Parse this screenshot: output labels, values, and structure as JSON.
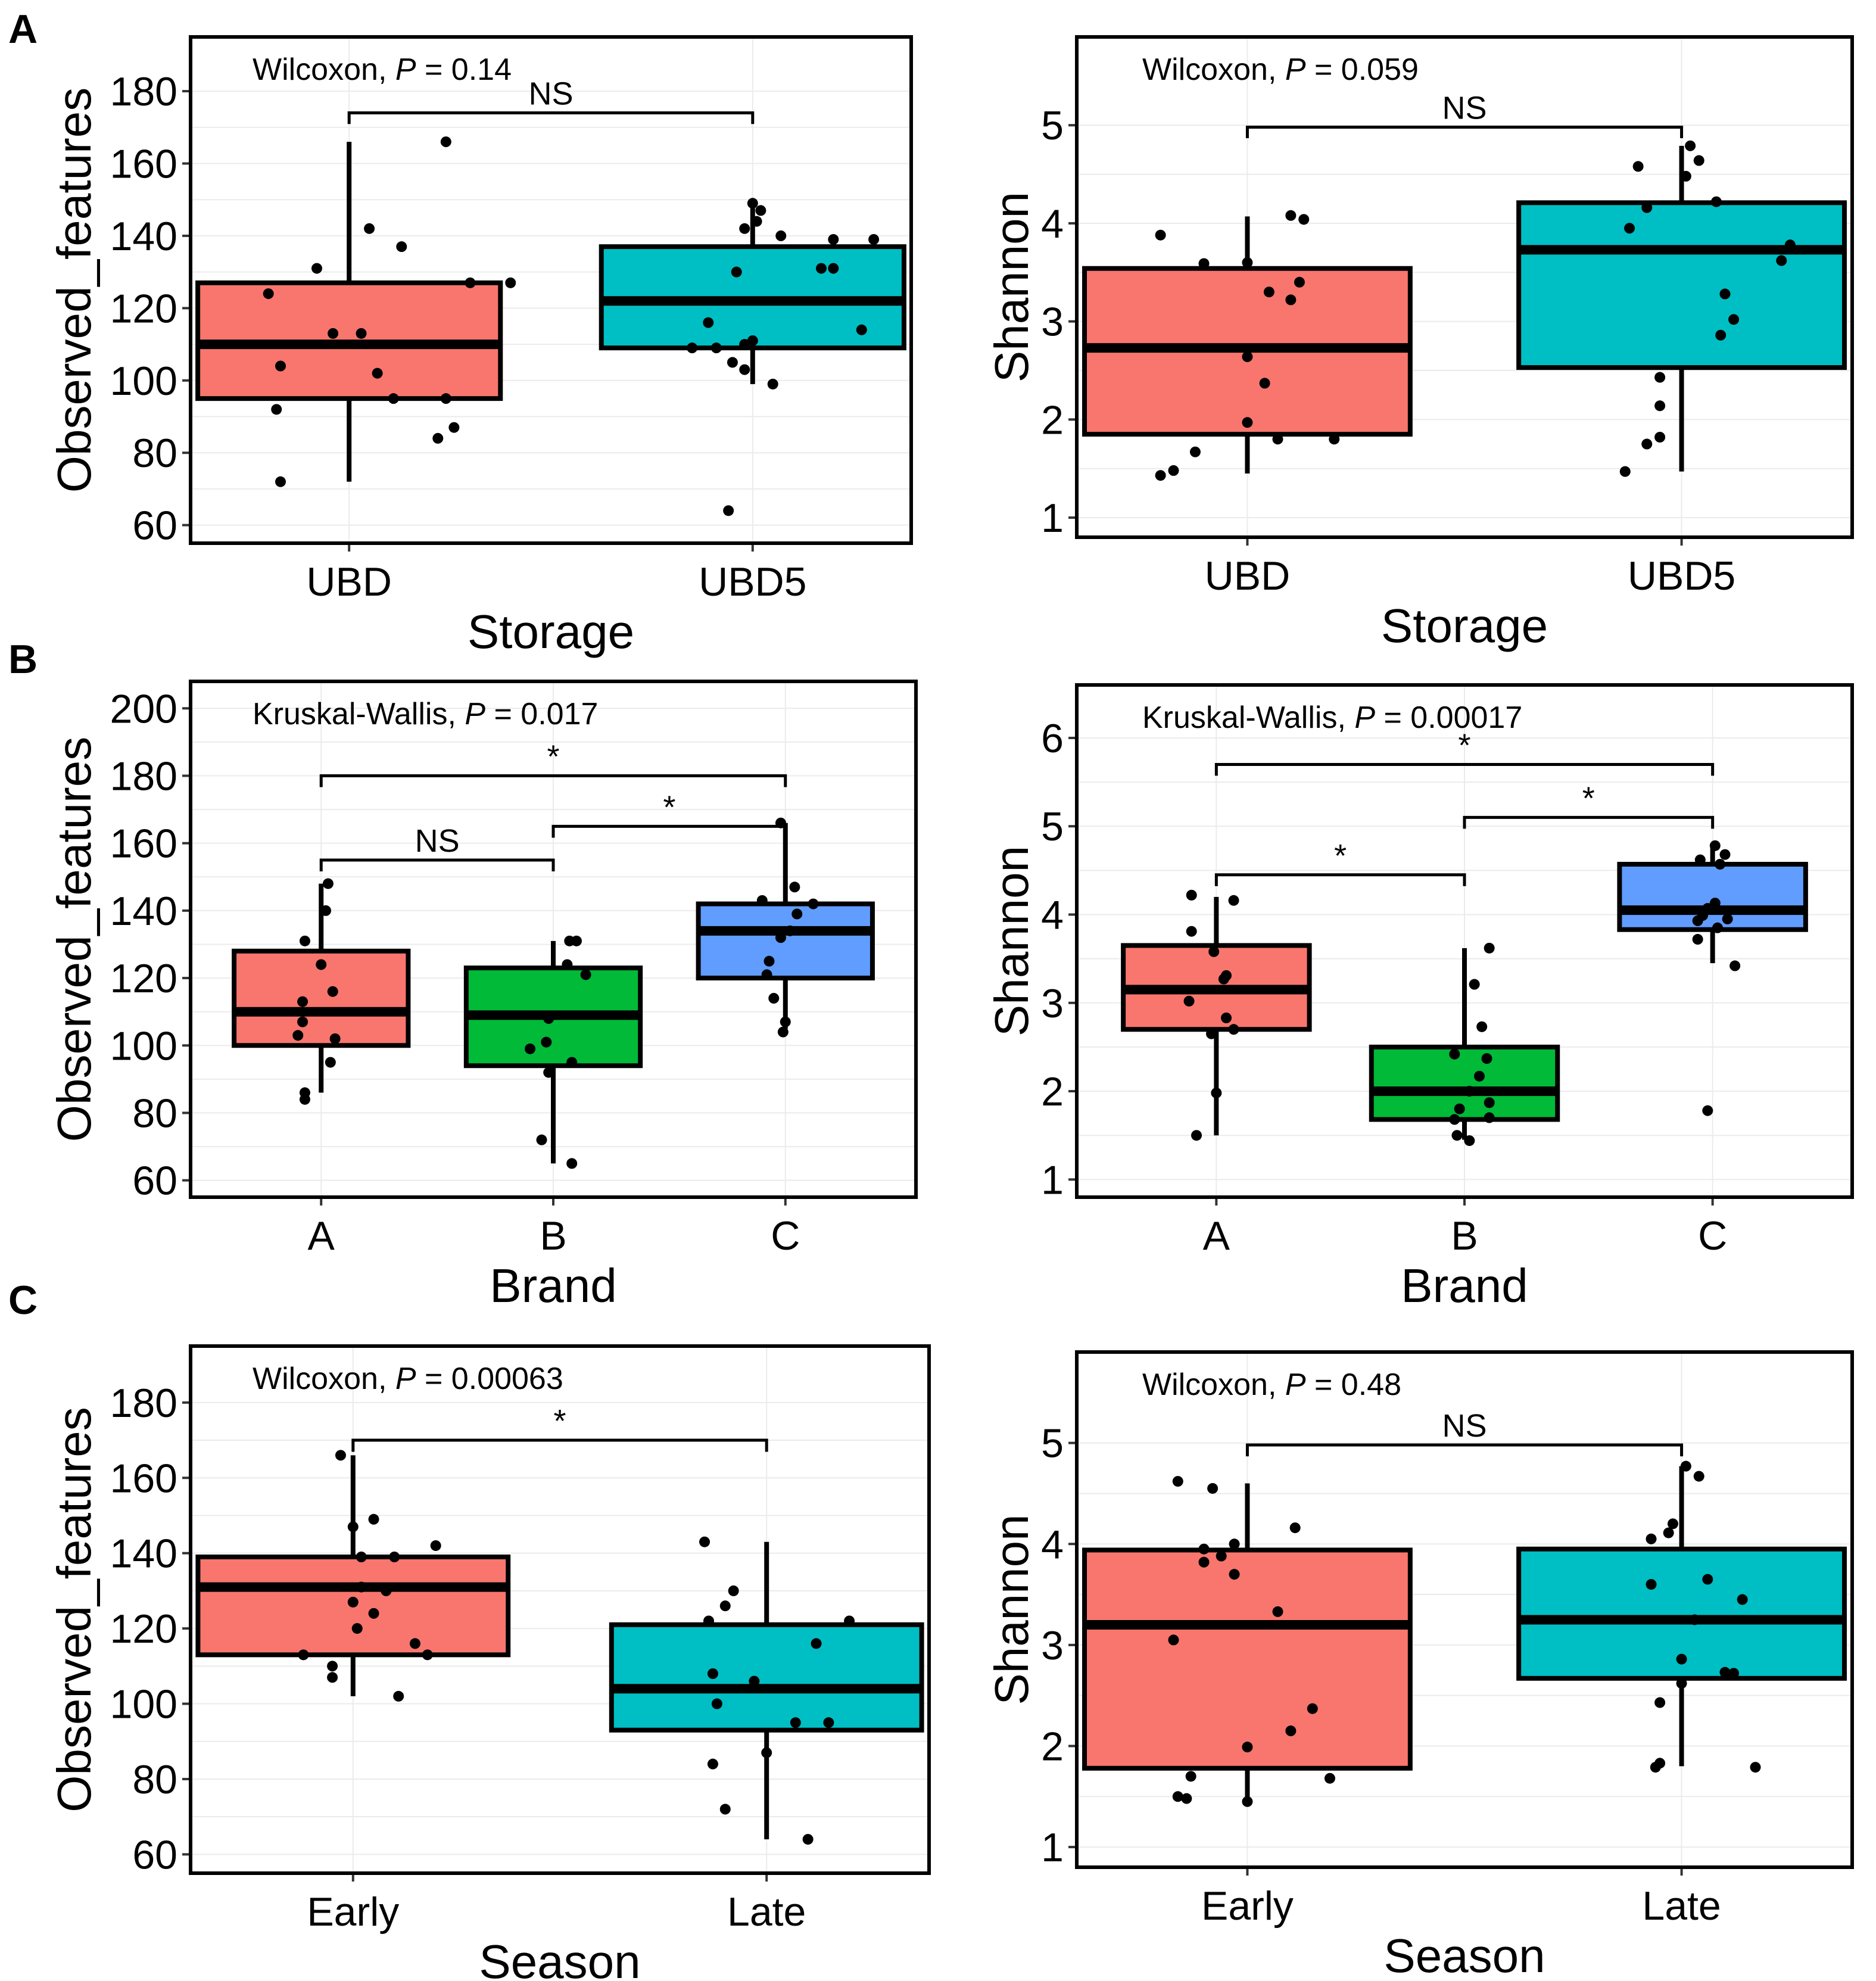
{
  "panel_letters": [
    "A",
    "B",
    "C"
  ],
  "colors": {
    "red": "#F8766D",
    "teal": "#00BFC4",
    "green": "#00BA38",
    "blue": "#619CFF"
  },
  "chart_data": [
    {
      "type": "box",
      "panel": "A",
      "xlabel": "Storage",
      "ylabel": "Observed_features",
      "ylim": [
        55,
        195
      ],
      "yticks": [
        60,
        80,
        100,
        120,
        140,
        160,
        180
      ],
      "categories": [
        "UBD",
        "UBD5"
      ],
      "box_colors": [
        "red",
        "teal"
      ],
      "boxes": [
        {
          "whisker_low": 72,
          "q1": 95,
          "median": 110,
          "q3": 127,
          "whisker_high": 166
        },
        {
          "whisker_low": 99,
          "q1": 109,
          "median": 122,
          "q3": 137,
          "whisker_high": 149
        }
      ],
      "points": [
        [
          [
            -0.2,
            124
          ],
          [
            -0.08,
            131
          ],
          [
            0.05,
            142
          ],
          [
            0.3,
            127
          ],
          [
            0.03,
            113
          ],
          [
            0.07,
            102
          ],
          [
            -0.04,
            113
          ],
          [
            0.11,
            95
          ],
          [
            -0.18,
            92
          ],
          [
            0.22,
            84
          ],
          [
            0.26,
            87
          ],
          [
            0.13,
            137
          ],
          [
            0.24,
            95
          ],
          [
            -0.17,
            104
          ],
          [
            -0.17,
            72
          ],
          [
            0.24,
            166
          ],
          [
            0.4,
            127
          ]
        ],
        [
          [
            -0.15,
            109
          ],
          [
            0.3,
            139
          ],
          [
            -0.11,
            116
          ],
          [
            -0.04,
            130
          ],
          [
            0.01,
            144
          ],
          [
            0.17,
            131
          ],
          [
            0.2,
            131
          ],
          [
            0.2,
            139
          ],
          [
            0.05,
            99
          ],
          [
            -0.05,
            105
          ],
          [
            -0.02,
            142
          ],
          [
            0.07,
            140
          ],
          [
            -0.02,
            110
          ],
          [
            0.0,
            149
          ],
          [
            -0.09,
            109
          ],
          [
            -0.02,
            103
          ],
          [
            0.27,
            114
          ],
          [
            -0.06,
            64
          ],
          [
            0.02,
            147
          ],
          [
            0.0,
            111
          ]
        ]
      ],
      "stat_test": "Wilcoxon,",
      "p_label": "P",
      "p_value": "= 0.14",
      "brackets": [
        {
          "from": 0,
          "to": 1,
          "y": 174,
          "label": "NS"
        }
      ]
    },
    {
      "type": "box",
      "panel": "A",
      "xlabel": "Storage",
      "ylabel": "Shannon",
      "ylim": [
        0.8,
        5.9
      ],
      "yticks": [
        1,
        2,
        3,
        4,
        5
      ],
      "categories": [
        "UBD",
        "UBD5"
      ],
      "box_colors": [
        "red",
        "teal"
      ],
      "boxes": [
        {
          "whisker_low": 1.45,
          "q1": 1.85,
          "median": 2.73,
          "q3": 3.54,
          "whisker_high": 4.07
        },
        {
          "whisker_low": 1.47,
          "q1": 2.53,
          "median": 3.73,
          "q3": 4.21,
          "whisker_high": 4.79
        }
      ],
      "points": [
        [
          [
            0.1,
            4.08
          ],
          [
            -0.2,
            3.88
          ],
          [
            -0.1,
            3.59
          ],
          [
            0.0,
            3.6
          ],
          [
            0.12,
            3.4
          ],
          [
            0.1,
            3.22
          ],
          [
            0.05,
            3.3
          ],
          [
            0.13,
            4.04
          ],
          [
            0.04,
            2.37
          ],
          [
            0.0,
            2.64
          ],
          [
            0.0,
            1.97
          ],
          [
            0.07,
            1.8
          ],
          [
            -0.12,
            1.67
          ],
          [
            0.2,
            1.8
          ],
          [
            -0.17,
            1.48
          ],
          [
            -0.2,
            1.43
          ]
        ],
        [
          [
            -0.1,
            4.58
          ],
          [
            -0.12,
            3.95
          ],
          [
            -0.08,
            4.16
          ],
          [
            0.08,
            4.22
          ],
          [
            0.01,
            4.48
          ],
          [
            0.25,
            3.78
          ],
          [
            0.1,
            3.28
          ],
          [
            0.23,
            3.62
          ],
          [
            0.12,
            3.02
          ],
          [
            0.09,
            2.86
          ],
          [
            -0.05,
            2.43
          ],
          [
            -0.05,
            2.14
          ],
          [
            -0.08,
            1.75
          ],
          [
            -0.13,
            1.47
          ],
          [
            -0.05,
            1.82
          ],
          [
            0.02,
            4.79
          ],
          [
            0.04,
            4.64
          ]
        ]
      ],
      "stat_test": "Wilcoxon,",
      "p_label": "P",
      "p_value": "= 0.059",
      "brackets": [
        {
          "from": 0,
          "to": 1,
          "y": 4.98,
          "label": "NS"
        }
      ]
    },
    {
      "type": "box",
      "panel": "B",
      "xlabel": "Brand",
      "ylabel": "Observed_features",
      "ylim": [
        55,
        208
      ],
      "yticks": [
        60,
        80,
        100,
        120,
        140,
        160,
        180,
        200
      ],
      "categories": [
        "A",
        "B",
        "C"
      ],
      "box_colors": [
        "red",
        "green",
        "blue"
      ],
      "boxes": [
        {
          "whisker_low": 86,
          "q1": 100,
          "median": 110,
          "q3": 128,
          "whisker_high": 148
        },
        {
          "whisker_low": 65,
          "q1": 94,
          "median": 109,
          "q3": 123,
          "whisker_high": 131
        },
        {
          "whisker_low": 105,
          "q1": 120,
          "median": 134,
          "q3": 142,
          "whisker_high": 166
        }
      ],
      "points": [
        [
          [
            0.03,
            148
          ],
          [
            -0.07,
            131
          ],
          [
            0.0,
            124
          ],
          [
            0.02,
            140
          ],
          [
            0.05,
            116
          ],
          [
            -0.08,
            113
          ],
          [
            -0.08,
            107
          ],
          [
            -0.1,
            103
          ],
          [
            0.06,
            102
          ],
          [
            0.04,
            95
          ],
          [
            -0.07,
            86
          ],
          [
            -0.07,
            84
          ]
        ],
        [
          [
            -0.02,
            108
          ],
          [
            -0.03,
            101
          ],
          [
            0.06,
            124
          ],
          [
            0.1,
            131
          ],
          [
            0.07,
            131
          ],
          [
            0.14,
            121
          ],
          [
            -0.1,
            99
          ],
          [
            0.08,
            95
          ],
          [
            -0.02,
            92
          ],
          [
            -0.05,
            72
          ],
          [
            0.08,
            65
          ]
        ],
        [
          [
            -0.1,
            143
          ],
          [
            0.04,
            147
          ],
          [
            0.05,
            139
          ],
          [
            0.12,
            142
          ],
          [
            0.02,
            134
          ],
          [
            -0.02,
            132
          ],
          [
            -0.07,
            125
          ],
          [
            -0.05,
            114
          ],
          [
            -0.08,
            121
          ],
          [
            0.0,
            107
          ],
          [
            -0.01,
            104
          ],
          [
            -0.02,
            166
          ]
        ]
      ],
      "stat_test": "Kruskal-Wallis,",
      "p_label": "P",
      "p_value": "= 0.017",
      "brackets": [
        {
          "from": 0,
          "to": 1,
          "y": 155,
          "label": "NS"
        },
        {
          "from": 1,
          "to": 2,
          "y": 165,
          "label": "*"
        },
        {
          "from": 0,
          "to": 2,
          "y": 180,
          "label": "*"
        }
      ]
    },
    {
      "type": "box",
      "panel": "B",
      "xlabel": "Brand",
      "ylabel": "Shannon",
      "ylim": [
        0.8,
        6.6
      ],
      "yticks": [
        1,
        2,
        3,
        4,
        5,
        6
      ],
      "categories": [
        "A",
        "B",
        "C"
      ],
      "box_colors": [
        "red",
        "green",
        "blue"
      ],
      "boxes": [
        {
          "whisker_low": 1.5,
          "q1": 2.7,
          "median": 3.15,
          "q3": 3.65,
          "whisker_high": 4.2
        },
        {
          "whisker_low": 1.45,
          "q1": 1.68,
          "median": 2.0,
          "q3": 2.5,
          "whisker_high": 3.62
        },
        {
          "whisker_low": 3.45,
          "q1": 3.83,
          "median": 4.05,
          "q3": 4.57,
          "whisker_high": 4.78
        }
      ],
      "points": [
        [
          [
            -0.1,
            4.22
          ],
          [
            0.07,
            4.16
          ],
          [
            -0.1,
            3.81
          ],
          [
            -0.01,
            3.58
          ],
          [
            0.04,
            3.31
          ],
          [
            0.03,
            3.27
          ],
          [
            -0.11,
            3.02
          ],
          [
            0.04,
            2.83
          ],
          [
            0.07,
            2.7
          ],
          [
            -0.02,
            2.65
          ],
          [
            0.0,
            1.98
          ],
          [
            -0.08,
            1.5
          ]
        ],
        [
          [
            0.1,
            3.62
          ],
          [
            0.04,
            3.21
          ],
          [
            0.07,
            2.73
          ],
          [
            0.09,
            2.37
          ],
          [
            -0.04,
            2.42
          ],
          [
            0.06,
            2.17
          ],
          [
            0.02,
            2.0
          ],
          [
            0.1,
            1.87
          ],
          [
            0.1,
            1.7
          ],
          [
            -0.02,
            1.8
          ],
          [
            -0.03,
            1.5
          ],
          [
            0.02,
            1.44
          ],
          [
            -0.04,
            1.68
          ]
        ],
        [
          [
            -0.05,
            4.62
          ],
          [
            0.03,
            4.57
          ],
          [
            0.01,
            4.78
          ],
          [
            0.05,
            4.68
          ],
          [
            -0.04,
            3.99
          ],
          [
            -0.06,
            3.93
          ],
          [
            0.06,
            3.95
          ],
          [
            0.02,
            3.85
          ],
          [
            -0.02,
            4.07
          ],
          [
            -0.06,
            3.72
          ],
          [
            0.09,
            3.42
          ],
          [
            -0.02,
            1.78
          ],
          [
            0.01,
            4.13
          ]
        ]
      ],
      "stat_test": "Kruskal-Wallis,",
      "p_label": "P",
      "p_value": "= 0.00017",
      "brackets": [
        {
          "from": 0,
          "to": 1,
          "y": 4.45,
          "label": "*"
        },
        {
          "from": 1,
          "to": 2,
          "y": 5.1,
          "label": "*"
        },
        {
          "from": 0,
          "to": 2,
          "y": 5.7,
          "label": "*"
        }
      ]
    },
    {
      "type": "box",
      "panel": "C",
      "xlabel": "Season",
      "ylabel": "Observed_features",
      "ylim": [
        55,
        195
      ],
      "yticks": [
        60,
        80,
        100,
        120,
        140,
        160,
        180
      ],
      "categories": [
        "Early",
        "Late"
      ],
      "box_colors": [
        "red",
        "teal"
      ],
      "boxes": [
        {
          "whisker_low": 102,
          "q1": 113,
          "median": 131,
          "q3": 139,
          "whisker_high": 166
        },
        {
          "whisker_low": 64,
          "q1": 93,
          "median": 104,
          "q3": 121,
          "whisker_high": 143
        }
      ],
      "points": [
        [
          [
            -0.03,
            166
          ],
          [
            0.05,
            149
          ],
          [
            0.0,
            147
          ],
          [
            0.2,
            142
          ],
          [
            0.02,
            139
          ],
          [
            0.1,
            139
          ],
          [
            0.08,
            130
          ],
          [
            0.02,
            131
          ],
          [
            0.0,
            127
          ],
          [
            0.05,
            124
          ],
          [
            0.15,
            116
          ],
          [
            0.18,
            113
          ],
          [
            -0.12,
            113
          ],
          [
            -0.05,
            110
          ],
          [
            -0.05,
            107
          ],
          [
            0.11,
            102
          ],
          [
            0.01,
            120
          ]
        ],
        [
          [
            -0.15,
            143
          ],
          [
            -0.08,
            130
          ],
          [
            -0.1,
            126
          ],
          [
            -0.14,
            122
          ],
          [
            0.2,
            122
          ],
          [
            0.12,
            116
          ],
          [
            -0.03,
            106
          ],
          [
            -0.13,
            108
          ],
          [
            -0.12,
            100
          ],
          [
            0.07,
            95
          ],
          [
            0.15,
            95
          ],
          [
            0.0,
            87
          ],
          [
            -0.13,
            84
          ],
          [
            -0.1,
            72
          ],
          [
            0.1,
            64
          ]
        ]
      ],
      "stat_test": "Wilcoxon,",
      "p_label": "P",
      "p_value": "= 0.00063",
      "brackets": [
        {
          "from": 0,
          "to": 1,
          "y": 170,
          "label": "*"
        }
      ]
    },
    {
      "type": "box",
      "panel": "C",
      "xlabel": "Season",
      "ylabel": "Shannon",
      "ylim": [
        0.8,
        5.9
      ],
      "yticks": [
        1,
        2,
        3,
        4,
        5
      ],
      "categories": [
        "Early",
        "Late"
      ],
      "box_colors": [
        "red",
        "teal"
      ],
      "boxes": [
        {
          "whisker_low": 1.45,
          "q1": 1.78,
          "median": 3.2,
          "q3": 3.94,
          "whisker_high": 4.6
        },
        {
          "whisker_low": 1.8,
          "q1": 2.67,
          "median": 3.25,
          "q3": 3.95,
          "whisker_high": 4.77
        }
      ],
      "points": [
        [
          [
            -0.16,
            4.62
          ],
          [
            -0.08,
            4.55
          ],
          [
            -0.1,
            3.95
          ],
          [
            0.11,
            4.16
          ],
          [
            -0.03,
            4.0
          ],
          [
            -0.06,
            3.88
          ],
          [
            -0.1,
            3.82
          ],
          [
            -0.03,
            3.7
          ],
          [
            0.07,
            3.33
          ],
          [
            -0.17,
            3.05
          ],
          [
            0.15,
            2.37
          ],
          [
            0.1,
            2.15
          ],
          [
            0.0,
            1.99
          ],
          [
            -0.13,
            1.7
          ],
          [
            0.19,
            1.68
          ],
          [
            -0.16,
            1.5
          ],
          [
            -0.14,
            1.48
          ],
          [
            0.0,
            1.45
          ]
        ],
        [
          [
            0.01,
            4.77
          ],
          [
            0.04,
            4.67
          ],
          [
            -0.02,
            4.2
          ],
          [
            -0.03,
            4.11
          ],
          [
            -0.07,
            4.05
          ],
          [
            -0.07,
            3.6
          ],
          [
            0.06,
            3.65
          ],
          [
            0.14,
            3.45
          ],
          [
            0.03,
            3.25
          ],
          [
            0.0,
            2.86
          ],
          [
            0.12,
            2.72
          ],
          [
            0.1,
            2.73
          ],
          [
            -0.05,
            2.43
          ],
          [
            0.0,
            2.62
          ],
          [
            -0.05,
            1.83
          ],
          [
            -0.06,
            1.79
          ],
          [
            0.17,
            1.79
          ]
        ]
      ],
      "stat_test": "Wilcoxon,",
      "p_label": "P",
      "p_value": "= 0.48",
      "brackets": [
        {
          "from": 0,
          "to": 1,
          "y": 4.98,
          "label": "NS"
        }
      ]
    }
  ]
}
